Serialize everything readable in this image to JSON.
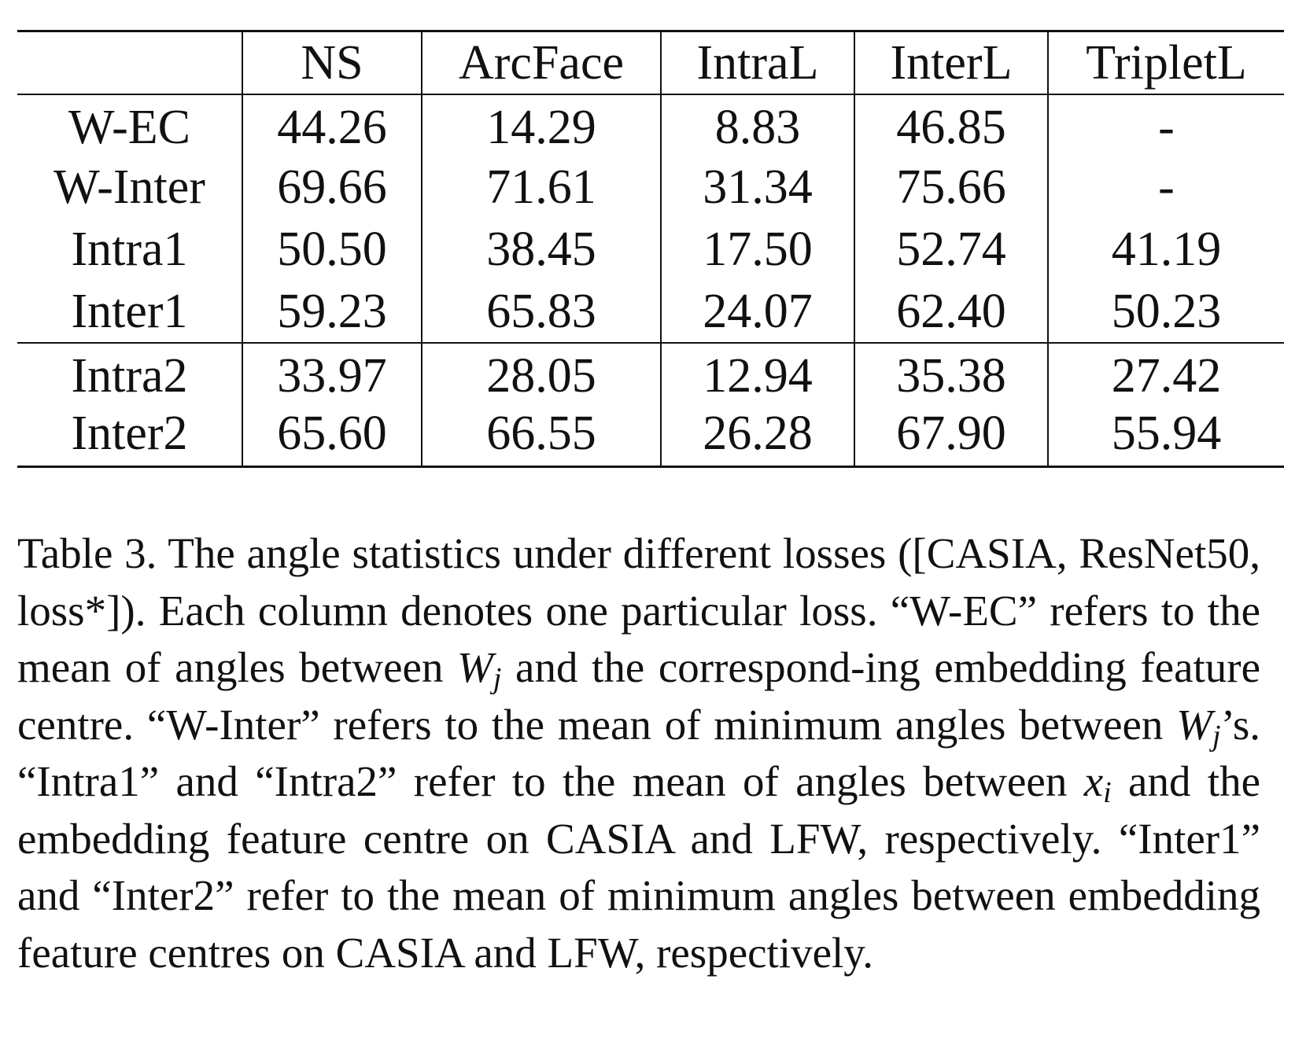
{
  "table": {
    "columns": [
      "",
      "NS",
      "ArcFace",
      "IntraL",
      "InterL",
      "TripletL"
    ],
    "group_a": [
      {
        "label": "W-EC",
        "values": [
          "44.26",
          "14.29",
          "8.83",
          "46.85",
          "-"
        ]
      },
      {
        "label": "W-Inter",
        "values": [
          "69.66",
          "71.61",
          "31.34",
          "75.66",
          "-"
        ]
      },
      {
        "label": "Intra1",
        "values": [
          "50.50",
          "38.45",
          "17.50",
          "52.74",
          "41.19"
        ]
      },
      {
        "label": "Inter1",
        "values": [
          "59.23",
          "65.83",
          "24.07",
          "62.40",
          "50.23"
        ]
      }
    ],
    "group_b": [
      {
        "label": "Intra2",
        "values": [
          "33.97",
          "28.05",
          "12.94",
          "35.38",
          "27.42"
        ]
      },
      {
        "label": "Inter2",
        "values": [
          "65.60",
          "66.55",
          "26.28",
          "67.90",
          "55.94"
        ]
      }
    ]
  },
  "caption": {
    "part1": "Table 3. The angle statistics under different losses ([CASIA, ResNet50, loss*]). Each column denotes one particular loss. “W-EC” refers to the mean of angles between ",
    "wj_var": "W",
    "wj_sub": "j",
    "part2": " and the correspond-ing embedding feature centre.  “W-Inter” refers to the mean of minimum angles between ",
    "wj2_var": "W",
    "wj2_sub": "j",
    "part3": "’s. “Intra1” and “Intra2” refer to the mean of angles between ",
    "xi_var": "x",
    "xi_sub": "i",
    "part4": " and the embedding feature centre on CASIA and LFW, respectively. “Inter1” and “Inter2” refer to the mean of minimum angles between embedding feature centres on CASIA and LFW, respectively."
  }
}
